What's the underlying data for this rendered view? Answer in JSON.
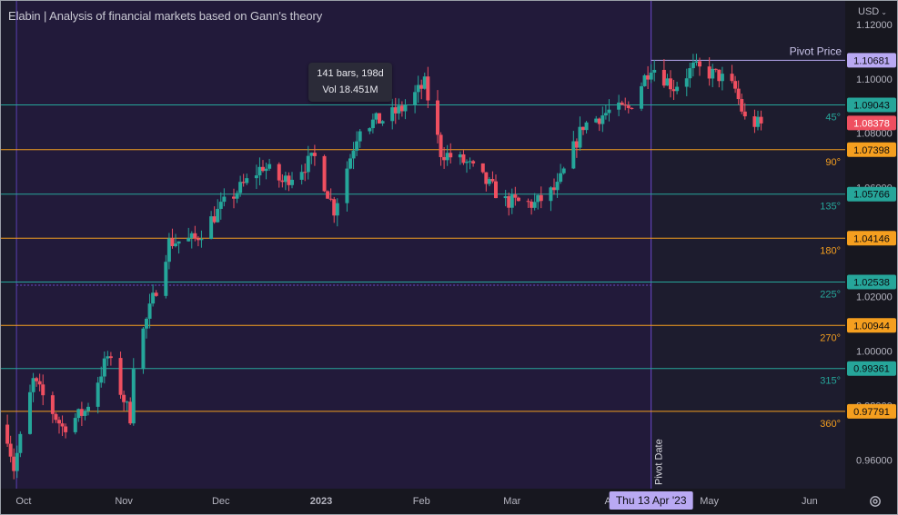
{
  "header": {
    "title": "Elabin | Analysis of financial markets based on Gann's theory",
    "currency": "USD"
  },
  "tooltip": {
    "line1": "141 bars, 198d",
    "line2": "Vol 18.451M"
  },
  "icons": {
    "settings": "gear-icon",
    "currency_menu": "chevron-down-icon"
  },
  "colors": {
    "background": "#1d1c2e",
    "background_pre_pivot": "#221a3a",
    "up_candle": "#25a69a",
    "down_candle": "#ef4f60",
    "teal_level": "#26a69a",
    "orange_level": "#f59f1f",
    "pivot": "#b9a9f3",
    "last_price": "#ef4f60"
  },
  "chart_data": {
    "type": "candlestick",
    "title": "Elabin | Analysis of financial markets based on Gann's theory",
    "currency": "USD",
    "y_range": [
      0.9495,
      1.1286
    ],
    "y_ticks": [
      "1.12000",
      "1.10000",
      "1.08000",
      "1.06000",
      "1.02000",
      "1.00000",
      "0.98000",
      "0.96000"
    ],
    "x_axis_labels": [
      {
        "label": "Oct",
        "date": "2022-10-01"
      },
      {
        "label": "Nov",
        "date": "2022-11-01"
      },
      {
        "label": "Dec",
        "date": "2022-12-01"
      },
      {
        "label": "2023",
        "date": "2023-01-01"
      },
      {
        "label": "Feb",
        "date": "2023-02-01"
      },
      {
        "label": "Mar",
        "date": "2023-03-01"
      },
      {
        "label": "Apr",
        "date": "2023-04-01"
      },
      {
        "label": "May",
        "date": "2023-05-01"
      },
      {
        "label": "Jun",
        "date": "2023-06-01"
      }
    ],
    "x_range_dates": [
      "2022-09-24",
      "2023-06-12"
    ],
    "pivot": {
      "date": "2023-04-13",
      "date_label": "Thu 13 Apr '23",
      "date_caption": "Pivot Date",
      "price": 1.10681,
      "price_label": "1.10681",
      "price_caption": "Pivot Price"
    },
    "last_price": {
      "value": 1.08378,
      "label": "1.08378"
    },
    "levels": [
      {
        "angle": "45°",
        "price": 1.09043,
        "label": "1.09043",
        "color": "#26a69a"
      },
      {
        "angle": "90°",
        "price": 1.07398,
        "label": "1.07398",
        "color": "#f59f1f"
      },
      {
        "angle": "135°",
        "price": 1.05766,
        "label": "1.05766",
        "color": "#26a69a"
      },
      {
        "angle": "180°",
        "price": 1.04146,
        "label": "1.04146",
        "color": "#f59f1f"
      },
      {
        "angle": "225°",
        "price": 1.02538,
        "label": "1.02538",
        "color": "#26a69a"
      },
      {
        "angle": "270°",
        "price": 1.00944,
        "label": "1.00944",
        "color": "#f59f1f"
      },
      {
        "angle": "315°",
        "price": 0.99361,
        "label": "0.99361",
        "color": "#26a69a"
      },
      {
        "angle": "360°",
        "price": 0.97791,
        "label": "0.97791",
        "color": "#f59f1f"
      }
    ],
    "close_path": [
      {
        "date": "2022-09-26",
        "close": 0.969
      },
      {
        "date": "2022-09-28",
        "close": 0.957
      },
      {
        "date": "2022-10-04",
        "close": 0.989
      },
      {
        "date": "2022-10-13",
        "close": 0.972
      },
      {
        "date": "2022-10-20",
        "close": 0.978
      },
      {
        "date": "2022-10-27",
        "close": 0.998
      },
      {
        "date": "2022-11-03",
        "close": 0.976
      },
      {
        "date": "2022-11-04",
        "close": 0.996
      },
      {
        "date": "2022-11-10",
        "close": 1.019
      },
      {
        "date": "2022-11-15",
        "close": 1.04
      },
      {
        "date": "2022-11-23",
        "close": 1.041
      },
      {
        "date": "2022-12-02",
        "close": 1.054
      },
      {
        "date": "2022-12-14",
        "close": 1.068
      },
      {
        "date": "2022-12-20",
        "close": 1.062
      },
      {
        "date": "2022-12-30",
        "close": 1.071
      },
      {
        "date": "2023-01-05",
        "close": 1.052
      },
      {
        "date": "2023-01-13",
        "close": 1.083
      },
      {
        "date": "2023-01-20",
        "close": 1.085
      },
      {
        "date": "2023-01-26",
        "close": 1.089
      },
      {
        "date": "2023-02-02",
        "close": 1.098
      },
      {
        "date": "2023-02-07",
        "close": 1.073
      },
      {
        "date": "2023-02-15",
        "close": 1.069
      },
      {
        "date": "2023-02-27",
        "close": 1.055
      },
      {
        "date": "2023-03-08",
        "close": 1.054
      },
      {
        "date": "2023-03-15",
        "close": 1.06
      },
      {
        "date": "2023-03-23",
        "close": 1.083
      },
      {
        "date": "2023-03-31",
        "close": 1.088
      },
      {
        "date": "2023-04-06",
        "close": 1.089
      },
      {
        "date": "2023-04-13",
        "close": 1.105
      },
      {
        "date": "2023-04-20",
        "close": 1.097
      },
      {
        "date": "2023-04-26",
        "close": 1.104
      },
      {
        "date": "2023-05-04",
        "close": 1.101
      },
      {
        "date": "2023-05-09",
        "close": 1.096
      },
      {
        "date": "2023-05-12",
        "close": 1.085
      },
      {
        "date": "2023-05-17",
        "close": 1.083
      }
    ]
  }
}
